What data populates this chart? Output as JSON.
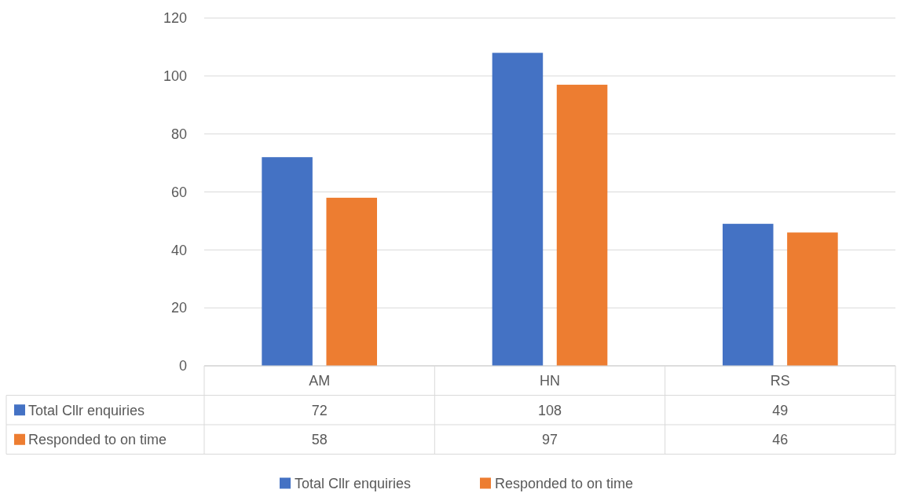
{
  "chart_data": {
    "type": "bar",
    "categories": [
      "AM",
      "HN",
      "RS"
    ],
    "series": [
      {
        "name": "Total Cllr enquiries",
        "color": "#4472c4",
        "values": [
          72,
          108,
          49
        ]
      },
      {
        "name": "Responded to on time",
        "color": "#ed7d31",
        "values": [
          58,
          97,
          46
        ]
      }
    ],
    "ylim": [
      0,
      120
    ],
    "yticks": [
      0,
      20,
      40,
      60,
      80,
      100,
      120
    ],
    "grid": "y",
    "legend": "bottom",
    "data_labels": true
  }
}
